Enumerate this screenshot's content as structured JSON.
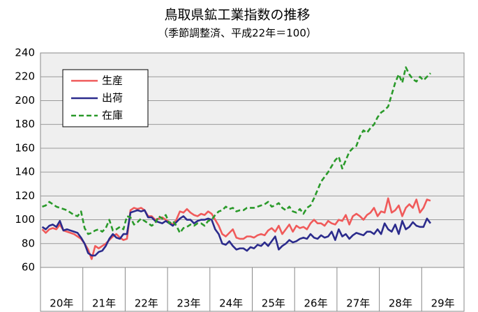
{
  "chart_data": {
    "type": "line",
    "title": "鳥取県鉱工業指数の推移",
    "subtitle": "（季節調整済、平成22年＝100）",
    "categories": [
      "20年",
      null,
      null,
      null,
      null,
      null,
      null,
      null,
      null,
      null,
      null,
      null,
      "21年",
      null,
      null,
      null,
      null,
      null,
      null,
      null,
      null,
      null,
      null,
      null,
      "22年",
      null,
      null,
      null,
      null,
      null,
      null,
      null,
      null,
      null,
      null,
      null,
      "23年",
      null,
      null,
      null,
      null,
      null,
      null,
      null,
      null,
      null,
      null,
      null,
      "24年",
      null,
      null,
      null,
      null,
      null,
      null,
      null,
      null,
      null,
      null,
      null,
      "25年",
      null,
      null,
      null,
      null,
      null,
      null,
      null,
      null,
      null,
      null,
      null,
      "26年",
      null,
      null,
      null,
      null,
      null,
      null,
      null,
      null,
      null,
      null,
      null,
      "27年",
      null,
      null,
      null,
      null,
      null,
      null,
      null,
      null,
      null,
      null,
      null,
      "28年",
      null,
      null,
      null,
      null,
      null,
      null,
      null,
      null,
      null,
      null,
      null,
      "29年",
      null,
      null
    ],
    "series": [
      {
        "name": "生産",
        "color": "#f05a5a",
        "dash": false,
        "values": [
          92,
          89,
          92,
          93,
          92,
          96,
          91,
          90,
          89,
          88,
          86,
          84,
          80,
          75,
          67,
          78,
          76,
          78,
          80,
          83,
          86,
          88,
          85,
          83,
          84,
          108,
          110,
          109,
          110,
          108,
          103,
          103,
          100,
          101,
          102,
          100,
          98,
          96,
          100,
          107,
          106,
          109,
          106,
          104,
          103,
          105,
          104,
          107,
          105,
          100,
          95,
          88,
          86,
          89,
          92,
          85,
          84,
          84,
          86,
          86,
          85,
          87,
          88,
          87,
          91,
          93,
          90,
          95,
          88,
          92,
          96,
          90,
          95,
          93,
          94,
          92,
          97,
          100,
          97,
          97,
          95,
          99,
          97,
          96,
          100,
          99,
          104,
          96,
          103,
          105,
          103,
          100,
          104,
          106,
          110,
          103,
          107,
          106,
          118,
          106,
          108,
          112,
          103,
          110,
          113,
          110,
          117,
          106,
          110,
          117,
          116
        ]
      },
      {
        "name": "出荷",
        "color": "#2b2b8c",
        "dash": false,
        "values": [
          94,
          92,
          95,
          96,
          94,
          99,
          91,
          92,
          91,
          90,
          89,
          85,
          80,
          72,
          70,
          70,
          73,
          74,
          78,
          84,
          88,
          85,
          84,
          88,
          88,
          106,
          107,
          108,
          107,
          108,
          102,
          102,
          99,
          98,
          97,
          99,
          97,
          95,
          98,
          101,
          103,
          100,
          100,
          97,
          99,
          100,
          100,
          101,
          100,
          92,
          88,
          80,
          79,
          82,
          78,
          75,
          76,
          76,
          74,
          77,
          76,
          79,
          78,
          81,
          78,
          82,
          86,
          75,
          78,
          80,
          83,
          81,
          82,
          84,
          85,
          84,
          88,
          85,
          84,
          87,
          85,
          86,
          90,
          83,
          92,
          86,
          88,
          84,
          87,
          89,
          88,
          87,
          90,
          90,
          88,
          92,
          88,
          97,
          92,
          90,
          96,
          88,
          99,
          92,
          94,
          98,
          95,
          94,
          94,
          101,
          97
        ]
      },
      {
        "name": "在庫",
        "color": "#2a9a2a",
        "dash": true,
        "values": [
          111,
          112,
          115,
          113,
          111,
          110,
          109,
          108,
          106,
          104,
          103,
          107,
          93,
          88,
          89,
          91,
          92,
          90,
          93,
          100,
          91,
          92,
          94,
          92,
          103,
          102,
          96,
          98,
          101,
          99,
          97,
          95,
          97,
          103,
          101,
          104,
          97,
          99,
          95,
          89,
          93,
          94,
          96,
          95,
          97,
          97,
          95,
          99,
          100,
          104,
          107,
          108,
          111,
          109,
          110,
          107,
          108,
          108,
          110,
          110,
          110,
          111,
          112,
          113,
          115,
          111,
          112,
          114,
          110,
          108,
          111,
          107,
          106,
          109,
          105,
          110,
          112,
          118,
          125,
          132,
          136,
          140,
          145,
          150,
          153,
          143,
          150,
          157,
          160,
          162,
          170,
          175,
          173,
          177,
          180,
          186,
          190,
          192,
          195,
          205,
          215,
          222,
          215,
          228,
          222,
          218,
          216,
          220,
          217,
          220,
          223
        ]
      }
    ],
    "ylim": [
      60,
      240
    ],
    "yticks": [
      60,
      80,
      100,
      120,
      140,
      160,
      180,
      200,
      220,
      240
    ],
    "grid": true,
    "legend": "upper left"
  }
}
